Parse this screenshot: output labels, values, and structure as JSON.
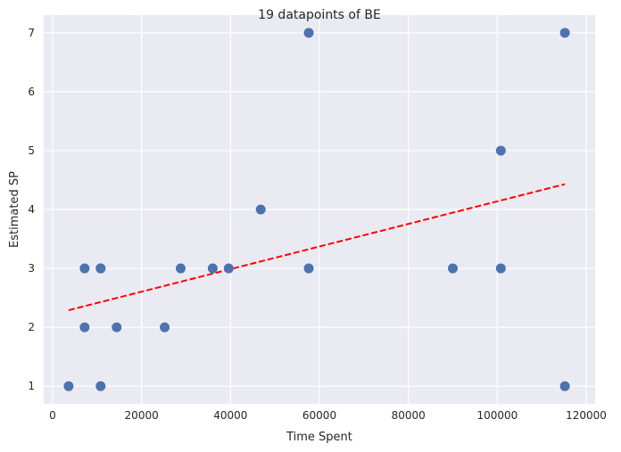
{
  "chart_data": {
    "type": "scatter",
    "title": "19 datapoints of BE",
    "xlabel": "Time Spent",
    "ylabel": "Estimated SP",
    "xlim": [
      -2000,
      122000
    ],
    "ylim": [
      0.7,
      7.3
    ],
    "xticks": [
      0,
      20000,
      40000,
      60000,
      80000,
      100000,
      120000
    ],
    "xtick_labels": [
      "0",
      "20000",
      "40000",
      "60000",
      "80000",
      "100000",
      "120000"
    ],
    "yticks": [
      1,
      2,
      3,
      4,
      5,
      6,
      7
    ],
    "ytick_labels": [
      "1",
      "2",
      "3",
      "4",
      "5",
      "6",
      "7"
    ],
    "grid": true,
    "series": [
      {
        "kind": "points",
        "color": "#4c72b0",
        "points": [
          {
            "x": 3600,
            "y": 1
          },
          {
            "x": 7200,
            "y": 3
          },
          {
            "x": 7200,
            "y": 2
          },
          {
            "x": 10800,
            "y": 3
          },
          {
            "x": 10800,
            "y": 3
          },
          {
            "x": 10800,
            "y": 1
          },
          {
            "x": 14400,
            "y": 2
          },
          {
            "x": 25200,
            "y": 2
          },
          {
            "x": 28800,
            "y": 3
          },
          {
            "x": 36000,
            "y": 3
          },
          {
            "x": 39600,
            "y": 3
          },
          {
            "x": 46800,
            "y": 4
          },
          {
            "x": 57600,
            "y": 7
          },
          {
            "x": 57600,
            "y": 3
          },
          {
            "x": 90000,
            "y": 3
          },
          {
            "x": 100800,
            "y": 5
          },
          {
            "x": 100800,
            "y": 3
          },
          {
            "x": 115200,
            "y": 7
          },
          {
            "x": 115200,
            "y": 1
          }
        ]
      },
      {
        "kind": "trendline",
        "color": "#ff0000",
        "style": "dashed",
        "points": [
          {
            "x": 3600,
            "y": 2.29
          },
          {
            "x": 115200,
            "y": 4.43
          }
        ]
      }
    ]
  }
}
